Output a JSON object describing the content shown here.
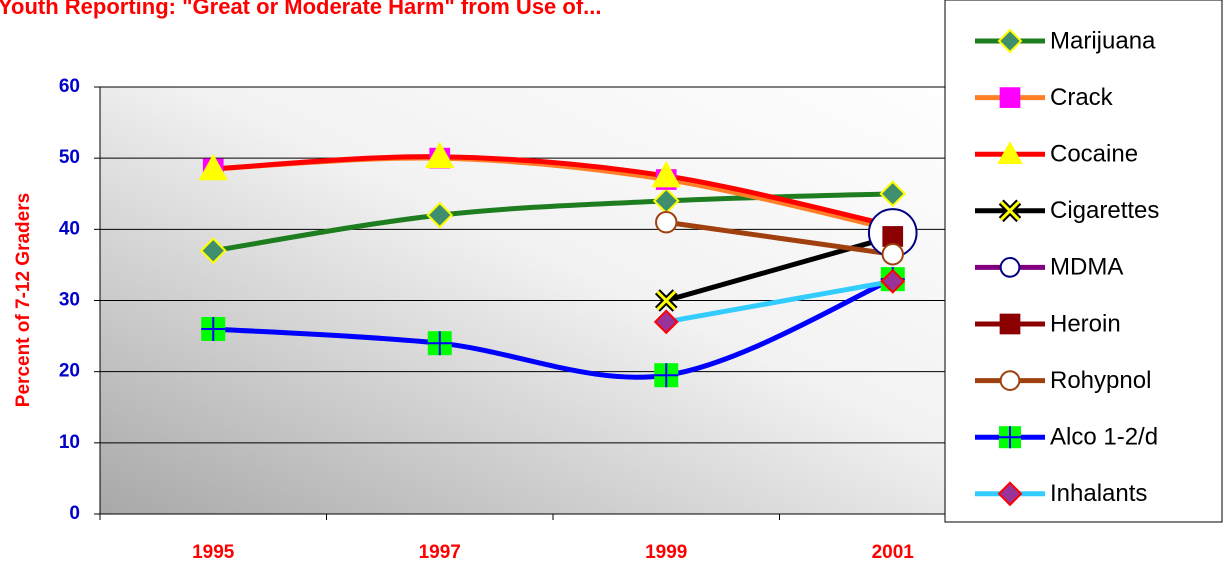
{
  "chart_data": {
    "type": "line",
    "title": "Youth Reporting: \"Great or Moderate Harm\" from Use of...",
    "y_label": "Percent of 7-12 Graders",
    "categories": [
      "1995",
      "1997",
      "1999",
      "2001"
    ],
    "ylim": [
      0,
      60
    ],
    "yticks": [
      0,
      10,
      20,
      30,
      40,
      50,
      60
    ],
    "grid": true,
    "legend": "right",
    "series": [
      {
        "name": "Marijuana",
        "color": "#1e7d1e",
        "marker": "diamond",
        "marker_fill": "#3f8f6f",
        "marker_edge": "#ffff00",
        "values": [
          37,
          42,
          44,
          45
        ]
      },
      {
        "name": "Crack",
        "color": "#ff7f27",
        "marker": "square",
        "marker_fill": "#ff00ff",
        "marker_edge": "#ff00ff",
        "values": [
          48.5,
          50,
          47,
          40
        ]
      },
      {
        "name": "Cocaine",
        "color": "#ff0000",
        "marker": "triangle",
        "marker_fill": "#ffff00",
        "marker_edge": "#ffff00",
        "values": [
          48.5,
          50.2,
          47.5,
          40.5
        ]
      },
      {
        "name": "Cigarettes",
        "color": "#000000",
        "marker": "x",
        "marker_fill": "#ffff00",
        "marker_edge": "#000000",
        "values": [
          null,
          null,
          30,
          39
        ]
      },
      {
        "name": "MDMA",
        "color": "#800080",
        "marker": "circle",
        "marker_fill": "#ffffff",
        "marker_edge": "#000080",
        "values": [
          null,
          null,
          null,
          39.5
        ]
      },
      {
        "name": "Heroin",
        "color": "#8b0000",
        "marker": "square",
        "marker_fill": "#8b0000",
        "marker_edge": "#8b0000",
        "values": [
          null,
          null,
          null,
          39
        ]
      },
      {
        "name": "Rohypnol",
        "color": "#a0400f",
        "marker": "circle",
        "marker_fill": "#ffffff",
        "marker_edge": "#a0400f",
        "values": [
          null,
          null,
          41,
          36.5
        ]
      },
      {
        "name": "Alco 1-2/d",
        "color": "#0000ff",
        "marker": "plus",
        "marker_fill": "#00ff00",
        "marker_edge": "#0000ff",
        "values": [
          26,
          24,
          19.5,
          33
        ]
      },
      {
        "name": "Inhalants",
        "color": "#33ccff",
        "marker": "diamond",
        "marker_fill": "#993399",
        "marker_edge": "#ff0000",
        "values": [
          null,
          null,
          27,
          32.7
        ]
      }
    ]
  }
}
